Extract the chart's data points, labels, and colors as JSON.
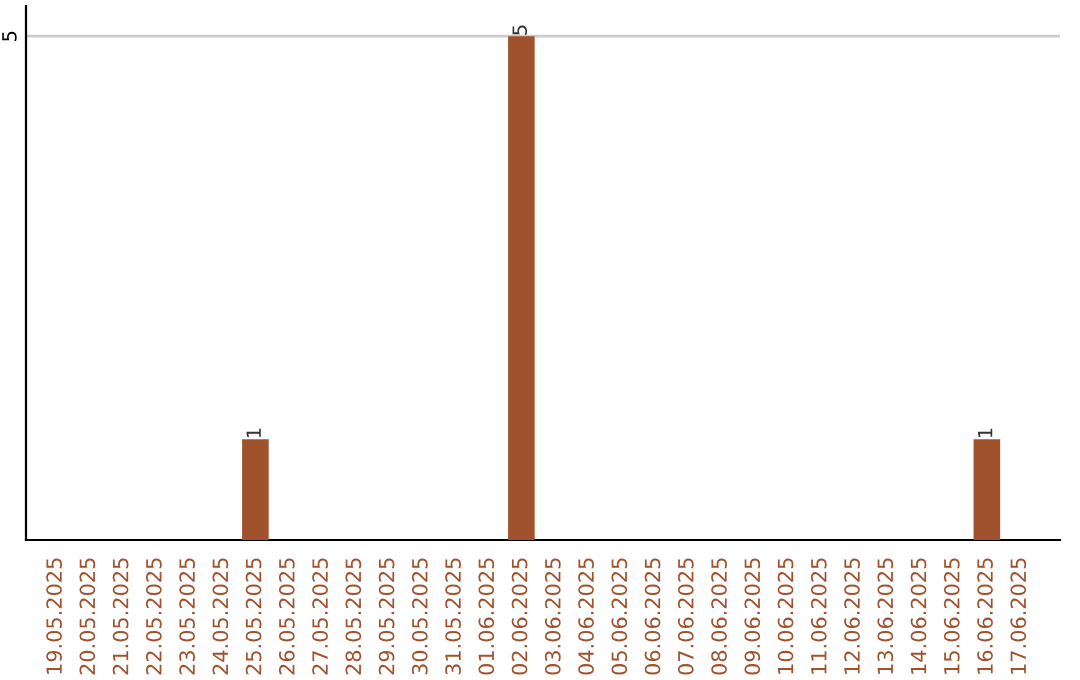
{
  "chart_data": {
    "type": "bar",
    "categories": [
      "19.05.2025",
      "20.05.2025",
      "21.05.2025",
      "22.05.2025",
      "23.05.2025",
      "24.05.2025",
      "25.05.2025",
      "26.05.2025",
      "27.05.2025",
      "28.05.2025",
      "29.05.2025",
      "30.05.2025",
      "31.05.2025",
      "01.06.2025",
      "02.06.2025",
      "03.06.2025",
      "04.06.2025",
      "05.06.2025",
      "06.06.2025",
      "07.06.2025",
      "08.06.2025",
      "09.06.2025",
      "10.06.2025",
      "11.06.2025",
      "12.06.2025",
      "13.06.2025",
      "14.06.2025",
      "15.06.2025",
      "16.06.2025",
      "17.06.2025"
    ],
    "values": [
      0,
      0,
      0,
      0,
      0,
      0,
      1,
      0,
      0,
      0,
      0,
      0,
      0,
      0,
      5,
      0,
      0,
      0,
      0,
      0,
      0,
      0,
      0,
      0,
      0,
      0,
      0,
      0,
      1,
      0
    ],
    "value_labels": [
      null,
      null,
      null,
      null,
      null,
      null,
      "1",
      null,
      null,
      null,
      null,
      null,
      null,
      null,
      "5",
      null,
      null,
      null,
      null,
      null,
      null,
      null,
      null,
      null,
      null,
      null,
      null,
      null,
      "1",
      null
    ],
    "color": "#a0522d",
    "ylim": [
      0,
      5.3
    ],
    "yticks": [
      5
    ],
    "grid": "y"
  }
}
